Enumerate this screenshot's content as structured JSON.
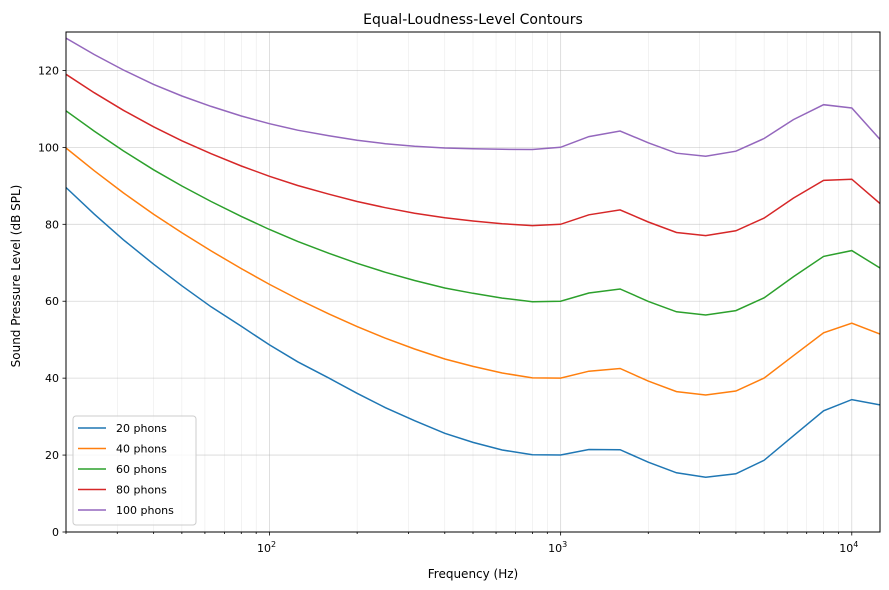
{
  "chart_data": {
    "type": "line",
    "title": "Equal-Loudness-Level Contours",
    "xlabel": "Frequency (Hz)",
    "ylabel": "Sound Pressure Level (dB SPL)",
    "xscale": "log",
    "xlim": [
      20,
      12500
    ],
    "ylim": [
      0,
      130
    ],
    "grid": true,
    "legend_position": "lower-left",
    "x_tick_labels": [
      {
        "value": 100,
        "base": "10",
        "exp": "2"
      },
      {
        "value": 1000,
        "base": "10",
        "exp": "3"
      },
      {
        "value": 10000,
        "base": "10",
        "exp": "4"
      }
    ],
    "y_ticks": [
      0,
      20,
      40,
      60,
      80,
      100,
      120
    ],
    "x": [
      20,
      25,
      31.5,
      40,
      50,
      63,
      80,
      100,
      125,
      160,
      200,
      250,
      315,
      400,
      500,
      630,
      800,
      1000,
      1250,
      1600,
      2000,
      2500,
      3150,
      4000,
      5000,
      6300,
      8000,
      10000,
      12500
    ],
    "series": [
      {
        "name": "20 phons",
        "color": "#1f77b4",
        "values": [
          89.58,
          82.65,
          75.98,
          69.62,
          64.02,
          58.55,
          53.47,
          48.65,
          44.24,
          40.02,
          36.06,
          32.33,
          28.94,
          25.66,
          23.3,
          21.33,
          20.1,
          20.01,
          21.46,
          21.4,
          18.15,
          15.38,
          14.26,
          15.14,
          18.63,
          25.02,
          31.52,
          34.43,
          33.04
        ]
      },
      {
        "name": "40 phons",
        "color": "#ff7f0e",
        "values": [
          99.85,
          93.94,
          88.17,
          82.63,
          77.78,
          73.08,
          68.48,
          64.37,
          60.59,
          56.7,
          53.41,
          50.4,
          47.58,
          44.98,
          43.05,
          41.34,
          40.06,
          40.01,
          41.82,
          42.51,
          39.23,
          36.51,
          35.61,
          36.65,
          40.01,
          45.83,
          51.8,
          54.28,
          51.49
        ]
      },
      {
        "name": "60 phons",
        "color": "#2ca02c",
        "values": [
          109.51,
          104.23,
          99.08,
          94.18,
          89.96,
          85.94,
          82.05,
          78.65,
          75.56,
          72.47,
          69.86,
          67.53,
          65.39,
          63.45,
          62.05,
          60.81,
          59.89,
          60.01,
          62.15,
          63.19,
          59.96,
          57.26,
          56.42,
          57.57,
          60.89,
          66.36,
          71.66,
          73.16,
          68.63
        ]
      },
      {
        "name": "80 phons",
        "color": "#d62728",
        "values": [
          118.99,
          114.23,
          109.65,
          105.34,
          101.72,
          98.36,
          95.17,
          92.48,
          90.09,
          87.82,
          85.92,
          84.31,
          82.89,
          81.68,
          80.86,
          80.17,
          79.67,
          80.01,
          82.48,
          83.74,
          80.59,
          77.88,
          77.07,
          78.31,
          81.62,
          86.81,
          91.41,
          91.74,
          85.41
        ]
      },
      {
        "name": "100 phons",
        "color": "#9467bd",
        "values": [
          128.41,
          124.15,
          120.11,
          116.38,
          113.35,
          110.65,
          108.16,
          106.17,
          104.48,
          103.03,
          101.85,
          100.97,
          100.3,
          99.83,
          99.62,
          99.5,
          99.44,
          100.01,
          102.81,
          104.25,
          101.18,
          98.48,
          97.67,
          99.0,
          102.3,
          107.23,
          111.11,
          110.23,
          102.07
        ]
      }
    ]
  }
}
